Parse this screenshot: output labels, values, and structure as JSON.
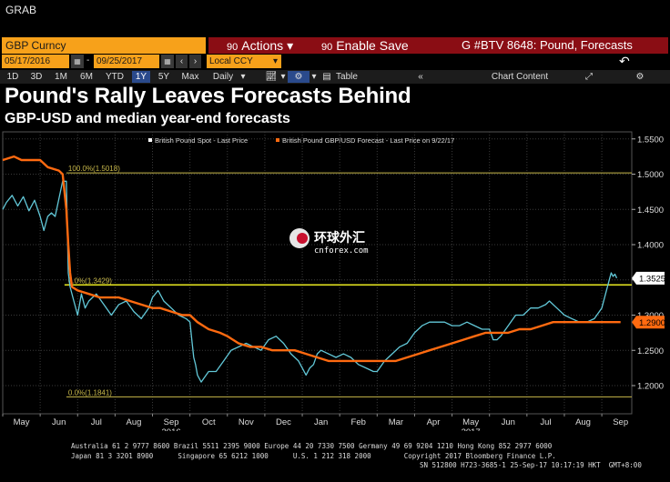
{
  "app": {
    "grab_label": "GRAB"
  },
  "header": {
    "security": "GBP Curncy",
    "actions_label": "Actions",
    "enable_save_label": "Enable Save",
    "window_title": "G #BTV 8648: Pound, Forecasts",
    "actions_code": "90",
    "save_code": "90"
  },
  "controls": {
    "start_date": "05/17/2016",
    "end_date": "09/25/2017",
    "date_sep": "-",
    "currency": "Local CCY",
    "periods": [
      "1D",
      "3D",
      "1M",
      "6M",
      "YTD",
      "1Y",
      "5Y",
      "Max"
    ],
    "active_period": "1Y",
    "frequency": "Daily",
    "table_label": "Table",
    "chart_content_label": "Chart Content"
  },
  "page": {
    "title": "Pound's Rally Leaves Forecasts Behind",
    "subtitle": "GBP-USD and median year-end forecasts"
  },
  "watermark": {
    "cn_text": "环球外汇",
    "site": "cnforex.com"
  },
  "colors": {
    "spot": "#62c8d8",
    "forecast": "#ff6a10",
    "hline": "#e8e820",
    "fib": "#c8b84a",
    "accent_orange": "#f7a11a",
    "header_red": "#8a0d14"
  },
  "chart_data": {
    "type": "line",
    "title": "Pound's Rally Leaves Forecasts Behind",
    "subtitle": "GBP-USD and median year-end forecasts",
    "legend": [
      {
        "name": "British Pound Spot - Last Price",
        "color": "#ffffff"
      },
      {
        "name": "British Pound GBP/USD Forecast - Last Price on 9/22/17",
        "color": "#ff6a10"
      }
    ],
    "legend_position": "top-center",
    "x_months": [
      "May",
      "Jun",
      "Jul",
      "Aug",
      "Sep",
      "Oct",
      "Nov",
      "Dec",
      "Jan",
      "Feb",
      "Mar",
      "Apr",
      "May",
      "Jun",
      "Jul",
      "Aug",
      "Sep"
    ],
    "x_years": [
      "2016",
      "2017"
    ],
    "x_range_months": [
      0,
      16.8
    ],
    "ylim": [
      1.16,
      1.56
    ],
    "y_ticks": [
      1.2,
      1.25,
      1.3,
      1.35,
      1.4,
      1.45,
      1.5,
      1.55
    ],
    "y_tick_labels": [
      "1.2000",
      "1.2500",
      "1.3000",
      "1.3500",
      "1.4000",
      "1.4500",
      "1.5000",
      "1.5500"
    ],
    "grid": true,
    "fib_levels": [
      {
        "label": "100.0%(1.5018)",
        "value": 1.5018
      },
      {
        "label": "0.0%(1.3429)",
        "value": 1.3429
      },
      {
        "label": "0.0%(1.1841)",
        "value": 1.1841
      }
    ],
    "horizontal_line": 1.3429,
    "last_labels": [
      {
        "series": "British Pound Spot - Last Price",
        "text": "1.3525",
        "value": 1.3525
      },
      {
        "series": "British Pound GBP/USD Forecast - Last Price on 9/22/17",
        "text": "1.2900",
        "value": 1.29
      }
    ],
    "series": [
      {
        "name": "British Pound Spot - Last Price",
        "points": [
          [
            0.0,
            1.45
          ],
          [
            0.1,
            1.46
          ],
          [
            0.25,
            1.47
          ],
          [
            0.4,
            1.455
          ],
          [
            0.55,
            1.468
          ],
          [
            0.7,
            1.448
          ],
          [
            0.85,
            1.463
          ],
          [
            1.0,
            1.44
          ],
          [
            1.1,
            1.42
          ],
          [
            1.2,
            1.44
          ],
          [
            1.3,
            1.445
          ],
          [
            1.4,
            1.44
          ],
          [
            1.5,
            1.465
          ],
          [
            1.6,
            1.49
          ],
          [
            1.7,
            1.49
          ],
          [
            1.75,
            1.36
          ],
          [
            1.8,
            1.34
          ],
          [
            1.9,
            1.32
          ],
          [
            2.0,
            1.3
          ],
          [
            2.1,
            1.33
          ],
          [
            2.2,
            1.31
          ],
          [
            2.3,
            1.32
          ],
          [
            2.5,
            1.33
          ],
          [
            2.7,
            1.315
          ],
          [
            2.9,
            1.3
          ],
          [
            3.1,
            1.315
          ],
          [
            3.3,
            1.32
          ],
          [
            3.5,
            1.305
          ],
          [
            3.7,
            1.295
          ],
          [
            3.9,
            1.31
          ],
          [
            4.0,
            1.325
          ],
          [
            4.15,
            1.335
          ],
          [
            4.3,
            1.32
          ],
          [
            4.5,
            1.31
          ],
          [
            4.7,
            1.3
          ],
          [
            4.9,
            1.295
          ],
          [
            5.0,
            1.29
          ],
          [
            5.05,
            1.265
          ],
          [
            5.1,
            1.24
          ],
          [
            5.15,
            1.23
          ],
          [
            5.2,
            1.215
          ],
          [
            5.3,
            1.205
          ],
          [
            5.5,
            1.22
          ],
          [
            5.7,
            1.22
          ],
          [
            5.9,
            1.235
          ],
          [
            6.1,
            1.25
          ],
          [
            6.3,
            1.255
          ],
          [
            6.5,
            1.26
          ],
          [
            6.7,
            1.255
          ],
          [
            6.9,
            1.25
          ],
          [
            7.1,
            1.265
          ],
          [
            7.3,
            1.27
          ],
          [
            7.5,
            1.26
          ],
          [
            7.7,
            1.245
          ],
          [
            7.9,
            1.235
          ],
          [
            8.0,
            1.225
          ],
          [
            8.1,
            1.215
          ],
          [
            8.2,
            1.225
          ],
          [
            8.3,
            1.23
          ],
          [
            8.4,
            1.245
          ],
          [
            8.5,
            1.25
          ],
          [
            8.7,
            1.245
          ],
          [
            8.9,
            1.24
          ],
          [
            9.1,
            1.245
          ],
          [
            9.3,
            1.24
          ],
          [
            9.5,
            1.23
          ],
          [
            9.7,
            1.225
          ],
          [
            9.9,
            1.22
          ],
          [
            10.0,
            1.22
          ],
          [
            10.2,
            1.235
          ],
          [
            10.4,
            1.245
          ],
          [
            10.6,
            1.255
          ],
          [
            10.8,
            1.26
          ],
          [
            11.0,
            1.275
          ],
          [
            11.2,
            1.285
          ],
          [
            11.4,
            1.29
          ],
          [
            11.6,
            1.29
          ],
          [
            11.8,
            1.29
          ],
          [
            12.0,
            1.285
          ],
          [
            12.2,
            1.285
          ],
          [
            12.4,
            1.29
          ],
          [
            12.6,
            1.285
          ],
          [
            12.8,
            1.28
          ],
          [
            13.0,
            1.28
          ],
          [
            13.1,
            1.265
          ],
          [
            13.2,
            1.265
          ],
          [
            13.3,
            1.27
          ],
          [
            13.5,
            1.285
          ],
          [
            13.7,
            1.3
          ],
          [
            13.9,
            1.3
          ],
          [
            14.1,
            1.31
          ],
          [
            14.3,
            1.31
          ],
          [
            14.5,
            1.315
          ],
          [
            14.6,
            1.32
          ],
          [
            14.8,
            1.31
          ],
          [
            15.0,
            1.3
          ],
          [
            15.2,
            1.295
          ],
          [
            15.4,
            1.29
          ],
          [
            15.6,
            1.29
          ],
          [
            15.8,
            1.295
          ],
          [
            16.0,
            1.31
          ],
          [
            16.1,
            1.33
          ],
          [
            16.2,
            1.35
          ],
          [
            16.25,
            1.36
          ],
          [
            16.3,
            1.355
          ],
          [
            16.35,
            1.358
          ],
          [
            16.4,
            1.3525
          ]
        ]
      },
      {
        "name": "British Pound GBP/USD Forecast - Last Price on 9/22/17",
        "points": [
          [
            0.0,
            1.52
          ],
          [
            0.3,
            1.525
          ],
          [
            0.5,
            1.52
          ],
          [
            0.8,
            1.52
          ],
          [
            1.0,
            1.52
          ],
          [
            1.2,
            1.51
          ],
          [
            1.5,
            1.505
          ],
          [
            1.6,
            1.5
          ],
          [
            1.7,
            1.45
          ],
          [
            1.75,
            1.4
          ],
          [
            1.8,
            1.36
          ],
          [
            1.85,
            1.34
          ],
          [
            2.0,
            1.335
          ],
          [
            2.3,
            1.33
          ],
          [
            2.6,
            1.325
          ],
          [
            2.9,
            1.325
          ],
          [
            3.1,
            1.325
          ],
          [
            3.4,
            1.32
          ],
          [
            3.7,
            1.315
          ],
          [
            4.0,
            1.31
          ],
          [
            4.2,
            1.31
          ],
          [
            4.5,
            1.305
          ],
          [
            4.8,
            1.3
          ],
          [
            5.0,
            1.3
          ],
          [
            5.2,
            1.29
          ],
          [
            5.5,
            1.28
          ],
          [
            5.8,
            1.275
          ],
          [
            6.0,
            1.27
          ],
          [
            6.3,
            1.26
          ],
          [
            6.6,
            1.255
          ],
          [
            6.9,
            1.255
          ],
          [
            7.2,
            1.25
          ],
          [
            7.5,
            1.25
          ],
          [
            7.8,
            1.25
          ],
          [
            8.1,
            1.245
          ],
          [
            8.4,
            1.24
          ],
          [
            8.7,
            1.235
          ],
          [
            9.0,
            1.235
          ],
          [
            9.3,
            1.235
          ],
          [
            9.6,
            1.235
          ],
          [
            9.9,
            1.235
          ],
          [
            10.2,
            1.235
          ],
          [
            10.5,
            1.235
          ],
          [
            10.8,
            1.24
          ],
          [
            11.1,
            1.245
          ],
          [
            11.4,
            1.25
          ],
          [
            11.7,
            1.255
          ],
          [
            12.0,
            1.26
          ],
          [
            12.3,
            1.265
          ],
          [
            12.6,
            1.27
          ],
          [
            12.9,
            1.275
          ],
          [
            13.2,
            1.275
          ],
          [
            13.5,
            1.275
          ],
          [
            13.8,
            1.28
          ],
          [
            14.1,
            1.28
          ],
          [
            14.4,
            1.285
          ],
          [
            14.7,
            1.29
          ],
          [
            15.0,
            1.29
          ],
          [
            15.3,
            1.29
          ],
          [
            15.6,
            1.29
          ],
          [
            15.9,
            1.29
          ],
          [
            16.2,
            1.29
          ],
          [
            16.5,
            1.29
          ]
        ]
      }
    ]
  },
  "footer": {
    "line1": "Australia 61 2 9777 8600 Brazil 5511 2395 9000 Europe 44 20 7330 7500 Germany 49 69 9204 1210 Hong Kong 852 2977 6000",
    "line2": "Japan 81 3 3201 8900      Singapore 65 6212 1000      U.S. 1 212 318 2000        Copyright 2017 Bloomberg Finance L.P.",
    "line3": "SN 512800 H723-3685-1 25-Sep-17 10:17:19 HKT  GMT+8:00"
  }
}
